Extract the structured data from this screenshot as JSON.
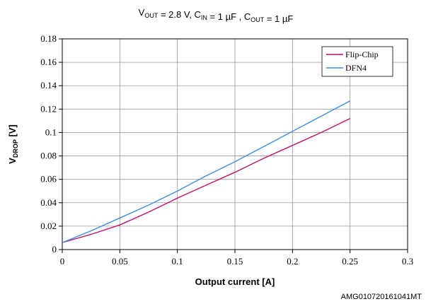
{
  "chart_data": {
    "type": "line",
    "title": {
      "parts": [
        {
          "text": "V",
          "sub": "OUT"
        },
        {
          "text": " = 2.8 V, C",
          "sub": "IN"
        },
        {
          "text": " = 1 µF , C",
          "sub": "OUT"
        },
        {
          "text": " = 1 µF",
          "sub": ""
        }
      ]
    },
    "xlabel": "Output current [A]",
    "ylabel": {
      "main": "V",
      "sub": "DROP",
      "suffix": " [V]"
    },
    "xlim": [
      0,
      0.3
    ],
    "ylim": [
      0,
      0.18
    ],
    "x_ticks": [
      0,
      0.05,
      0.1,
      0.15,
      0.2,
      0.25,
      0.3
    ],
    "x_tick_labels": [
      "0",
      "0.05",
      "0.1",
      "0.15",
      "0.2",
      "0.25",
      "0.3"
    ],
    "y_ticks": [
      0,
      0.02,
      0.04,
      0.06,
      0.08,
      0.1,
      0.12,
      0.14,
      0.16,
      0.18
    ],
    "y_tick_labels": [
      "0",
      "0.02",
      "0.04",
      "0.06",
      "0.08",
      "0.1",
      "0.12",
      "0.14",
      "0.16",
      "0.18"
    ],
    "grid": true,
    "legend_position": "top-right",
    "series": [
      {
        "name": "Flip-Chip",
        "color": "#c0116a",
        "x": [
          0,
          0.025,
          0.05,
          0.075,
          0.1,
          0.125,
          0.15,
          0.175,
          0.2,
          0.225,
          0.25
        ],
        "y": [
          0.006,
          0.013,
          0.021,
          0.032,
          0.044,
          0.055,
          0.066,
          0.078,
          0.089,
          0.1,
          0.112
        ]
      },
      {
        "name": "DFN4",
        "color": "#3d8fe0",
        "x": [
          0,
          0.025,
          0.05,
          0.075,
          0.1,
          0.125,
          0.15,
          0.175,
          0.2,
          0.225,
          0.25
        ],
        "y": [
          0.006,
          0.016,
          0.027,
          0.038,
          0.05,
          0.063,
          0.075,
          0.088,
          0.101,
          0.114,
          0.127
        ]
      }
    ]
  },
  "footer_code": "AMG010720161041MT"
}
